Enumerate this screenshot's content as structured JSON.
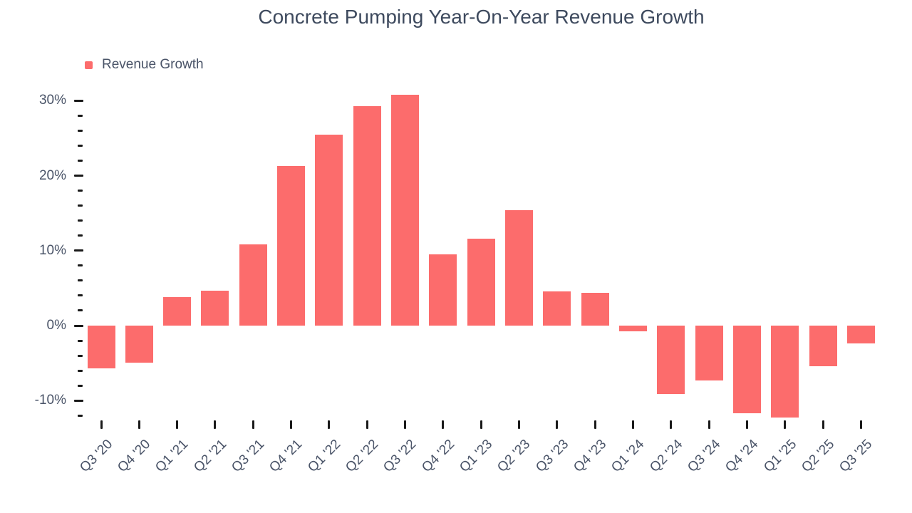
{
  "title": "Concrete Pumping Year-On-Year Revenue Growth",
  "legend": {
    "label": "Revenue Growth"
  },
  "colors": {
    "bar": "#fc6c6c",
    "title_text": "#3e4a5e",
    "axis_text": "#4a5468",
    "tick": "#1a1a1a",
    "background": "#ffffff"
  },
  "chart_data": {
    "type": "bar",
    "title": "Concrete Pumping Year-On-Year Revenue Growth",
    "series_name": "Revenue Growth",
    "categories": [
      "Q3 '20",
      "Q4 '20",
      "Q1 '21",
      "Q2 '21",
      "Q3 '21",
      "Q4 '21",
      "Q1 '22",
      "Q2 '22",
      "Q3 '22",
      "Q4 '22",
      "Q1 '23",
      "Q2 '23",
      "Q3 '23",
      "Q4 '23",
      "Q1 '24",
      "Q2 '24",
      "Q3 '24",
      "Q4 '24",
      "Q1 '25",
      "Q2 '25",
      "Q3 '25"
    ],
    "values": [
      -5.7,
      -4.9,
      3.8,
      4.7,
      10.8,
      21.3,
      25.5,
      29.3,
      30.8,
      9.5,
      11.6,
      15.4,
      4.6,
      4.4,
      -0.8,
      -9.1,
      -7.3,
      -11.7,
      -12.3,
      -5.4,
      -2.4
    ],
    "unit": "%",
    "xlabel": "",
    "ylabel": "",
    "y_axis": {
      "major_ticks": [
        30,
        20,
        10,
        0,
        -10
      ],
      "major_tick_labels": [
        "30%",
        "20%",
        "10%",
        "0%",
        "-10%"
      ],
      "minor_tick_step": 2,
      "min": -12,
      "max": 30
    },
    "grid": false,
    "legend_position": "top-left"
  }
}
